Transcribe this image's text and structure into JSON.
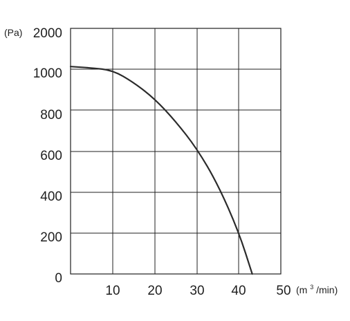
{
  "chart_data": {
    "type": "line",
    "title": "",
    "xlabel": "",
    "ylabel": "",
    "y_unit": "(Pa)",
    "x_unit_prefix": "(m",
    "x_unit_sup": "3",
    "x_unit_suffix": "/min)",
    "x_ticks": [
      "10",
      "20",
      "30",
      "40",
      "50"
    ],
    "y_ticks": [
      "0",
      "200",
      "400",
      "600",
      "800",
      "1000",
      "2000"
    ],
    "xlim": [
      0,
      50
    ],
    "grid": true,
    "colors": {
      "grid": "#1f1f1f",
      "curve": "#2b2b2b",
      "text": "#1f1f1f"
    },
    "series": [
      {
        "values_note": "",
        "points": [
          {
            "x": 0,
            "y": 1065
          },
          {
            "x": 5,
            "y": 1030
          },
          {
            "x": 10,
            "y": 995
          },
          {
            "x": 15,
            "y": 935
          },
          {
            "x": 20,
            "y": 855
          },
          {
            "x": 25,
            "y": 745
          },
          {
            "x": 30,
            "y": 615
          },
          {
            "x": 35,
            "y": 440
          },
          {
            "x": 40,
            "y": 205
          },
          {
            "x": 43.2,
            "y": 0
          }
        ]
      }
    ]
  }
}
